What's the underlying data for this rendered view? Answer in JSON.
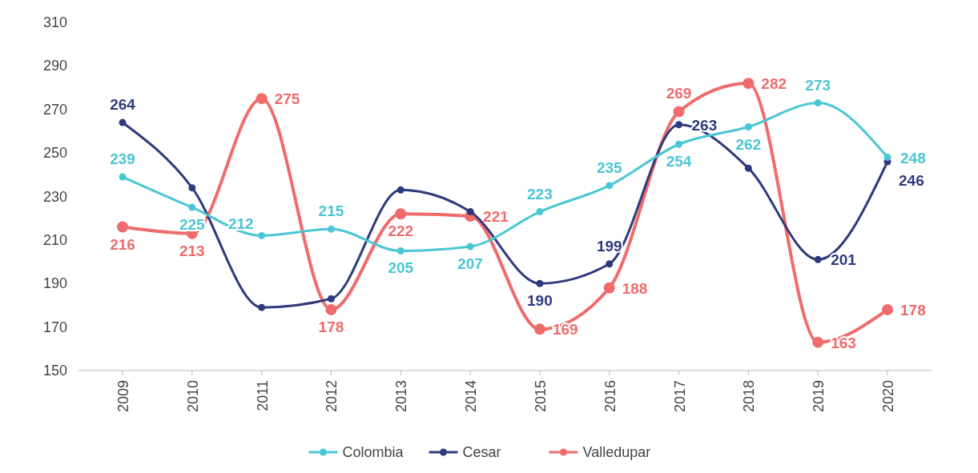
{
  "chart_data": {
    "type": "line",
    "categories": [
      "2009",
      "2010",
      "2011",
      "2012",
      "2013",
      "2014",
      "2015",
      "2016",
      "2017",
      "2018",
      "2019",
      "2020"
    ],
    "ylim": [
      150,
      310
    ],
    "yticks": [
      150,
      170,
      190,
      210,
      230,
      250,
      270,
      290,
      310
    ],
    "grid": false,
    "legend": "bottom",
    "marker": "circle",
    "line_style": "solid",
    "series": [
      {
        "name": "Colombia",
        "color": "#4bc6d4",
        "values": [
          239,
          225,
          212,
          215,
          205,
          207,
          223,
          235,
          254,
          262,
          273,
          248
        ],
        "value_labels": [
          "239",
          "225",
          "212",
          "215",
          "205",
          "207",
          "223",
          "235",
          "254",
          "262",
          "273",
          "248"
        ]
      },
      {
        "name": "Cesar",
        "color": "#2e3a7c",
        "values": [
          264,
          234,
          179,
          183,
          233,
          223,
          190,
          199,
          263,
          243,
          201,
          246
        ],
        "value_labels": [
          "264",
          null,
          null,
          null,
          null,
          null,
          "190",
          "199",
          "263",
          null,
          "201",
          "246"
        ]
      },
      {
        "name": "Valledupar",
        "color": "#f06b6b",
        "values": [
          216,
          213,
          275,
          178,
          222,
          221,
          169,
          188,
          269,
          282,
          163,
          178
        ],
        "value_labels": [
          "216",
          "213",
          "275",
          "178",
          "222",
          "221",
          "169",
          "188",
          "269",
          "282",
          "163",
          "178"
        ]
      }
    ]
  }
}
